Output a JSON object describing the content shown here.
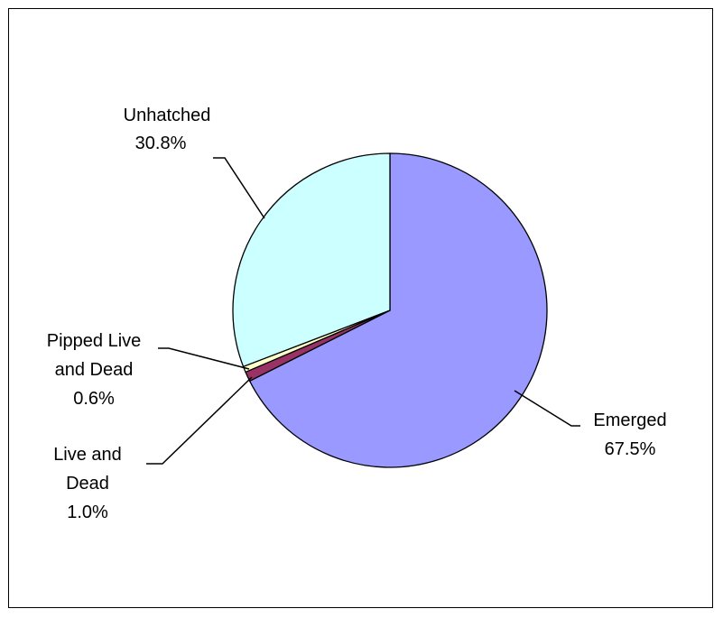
{
  "chart_data": {
    "type": "pie",
    "slices": [
      {
        "label": "Emerged",
        "value": 67.5,
        "value_label": "67.5%",
        "color": "#9999FF"
      },
      {
        "label": "Live and Dead",
        "value": 1.0,
        "value_label": "1.0%",
        "color": "#993366"
      },
      {
        "label": "Pipped Live and Dead",
        "value": 0.6,
        "value_label": "0.6%",
        "color": "#FFFFCC"
      },
      {
        "label": "Unhatched",
        "value": 30.8,
        "value_label": "30.8%",
        "color": "#CCFFFF"
      }
    ],
    "start_angle_deg": 0,
    "direction": "clockwise",
    "slice_outline_color": "#000000",
    "legend": "none",
    "data_labels": "category and percentage with leader lines"
  }
}
